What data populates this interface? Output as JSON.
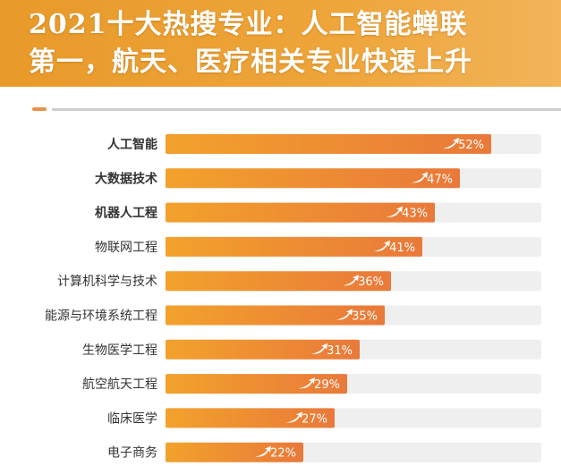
{
  "header": {
    "title_line1": "2021十大热搜专业：人工智能蝉联",
    "title_line2": "第一，航天、医疗相关专业快速上升"
  },
  "colors": {
    "bar_start": "#f2a22c",
    "bar_end": "#e9793a",
    "track": "#efefef",
    "label_text": "#333333",
    "value_text": "#ffffff"
  },
  "chart_data": {
    "type": "bar",
    "orientation": "horizontal",
    "categories": [
      "人工智能",
      "大数据技术",
      "机器人工程",
      "物联网工程",
      "计算机科学与技术",
      "能源与环境系统工程",
      "生物医学工程",
      "航空航天工程",
      "临床医学",
      "电子商务"
    ],
    "values": [
      52,
      47,
      43,
      41,
      36,
      35,
      31,
      29,
      27,
      22
    ],
    "value_labels": [
      "52%",
      "47%",
      "43%",
      "41%",
      "36%",
      "35%",
      "31%",
      "29%",
      "27%",
      "22%"
    ],
    "bold_categories": [
      "人工智能",
      "大数据技术",
      "机器人工程"
    ],
    "xlim": [
      0,
      60
    ],
    "value_icon": "trend-up-arrow-icon",
    "grid": false,
    "legend": "none"
  }
}
